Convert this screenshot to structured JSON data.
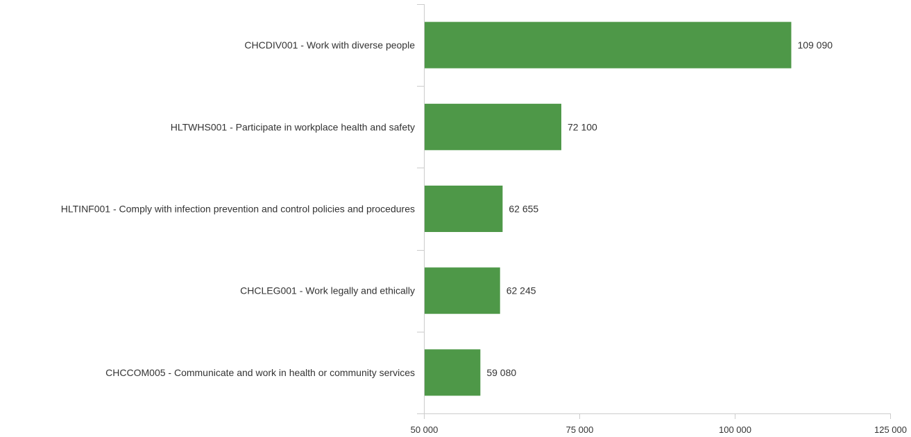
{
  "chart_data": {
    "type": "bar",
    "orientation": "horizontal",
    "categories": [
      "CHCDIV001 - Work with diverse people",
      "HLTWHS001 - Participate in workplace health and safety",
      "HLTINF001 - Comply with infection prevention and control policies and procedures",
      "CHCLEG001 - Work legally and ethically",
      "CHCCOM005 - Communicate and work in health or community services"
    ],
    "values": [
      109090,
      72100,
      62655,
      62245,
      59080
    ],
    "value_labels": [
      "109 090",
      "72 100",
      "62 655",
      "62 245",
      "59 080"
    ],
    "xlim": [
      50000,
      125000
    ],
    "x_ticks": [
      50000,
      75000,
      100000,
      125000
    ],
    "x_tick_labels": [
      "50 000",
      "75 000",
      "100 000",
      "125 000"
    ],
    "title": "",
    "xlabel": "",
    "ylabel": "",
    "grid": false,
    "legend": "none",
    "colors": {
      "bar": "#4e9848",
      "axis": "#cccccc",
      "text": "#333333"
    }
  }
}
